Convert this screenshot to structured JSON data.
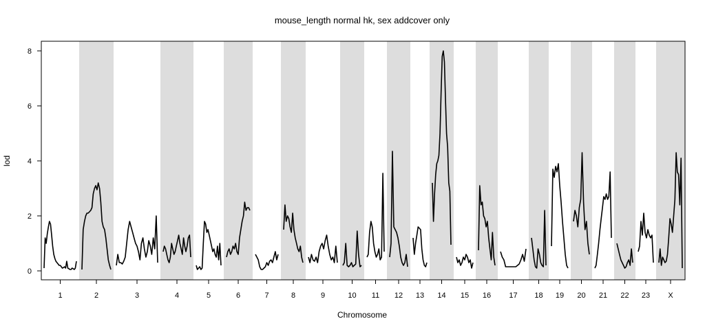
{
  "chart_data": {
    "type": "line",
    "title": "mouse_length normal hk, sex addcover only",
    "xlabel": "Chromosome",
    "ylabel": "lod",
    "ylim": [
      0,
      8.3
    ],
    "yticks": [
      "0",
      "2",
      "4",
      "6",
      "8"
    ],
    "grid": false,
    "legend": "none",
    "series_color": "#000000",
    "band_color": "#dddddd",
    "chromosomes": [
      {
        "label": "1",
        "shaded": false,
        "values": [
          0.1,
          1.2,
          1.0,
          1.35,
          1.6,
          1.8,
          1.7,
          1.3,
          0.9,
          0.6,
          0.45,
          0.35,
          0.3,
          0.25,
          0.2,
          0.2,
          0.15,
          0.1,
          0.12,
          0.15,
          0.1,
          0.35,
          0.1,
          0.08,
          0.05,
          0.05,
          0.1,
          0.08,
          0.05,
          0.1,
          0.35
        ]
      },
      {
        "label": "2",
        "shaded": true,
        "values": [
          0.05,
          1.5,
          1.8,
          2.0,
          2.1,
          2.1,
          2.15,
          2.2,
          2.3,
          2.8,
          3.0,
          3.1,
          2.95,
          3.2,
          3.0,
          2.5,
          1.8,
          1.6,
          1.5,
          1.2,
          0.8,
          0.4,
          0.2,
          0.05
        ]
      },
      {
        "label": "3",
        "shaded": false,
        "values": [
          0.2,
          0.6,
          0.3,
          0.3,
          0.25,
          0.35,
          0.5,
          1.0,
          1.5,
          1.8,
          1.6,
          1.4,
          1.2,
          1.0,
          0.9,
          0.7,
          0.4,
          1.0,
          1.2,
          0.8,
          0.5,
          0.7,
          1.1,
          0.9,
          0.6,
          1.2,
          0.8,
          2.0,
          0.3
        ]
      },
      {
        "label": "4",
        "shaded": true,
        "values": [
          0.7,
          0.9,
          0.8,
          0.6,
          0.4,
          0.3,
          0.5,
          1.0,
          0.8,
          0.6,
          0.7,
          0.9,
          1.1,
          1.3,
          1.0,
          0.8,
          0.6,
          1.2,
          0.9,
          0.7,
          0.9,
          1.2,
          1.3,
          0.5
        ]
      },
      {
        "label": "5",
        "shaded": false,
        "values": [
          0.2,
          0.05,
          0.1,
          0.15,
          0.05,
          0.1,
          1.0,
          1.8,
          1.7,
          1.4,
          1.5,
          1.3,
          1.1,
          0.9,
          0.7,
          0.8,
          0.6,
          0.5,
          0.9,
          0.4,
          1.0,
          0.2
        ]
      },
      {
        "label": "6",
        "shaded": true,
        "values": [
          0.5,
          0.7,
          0.8,
          0.6,
          0.7,
          0.9,
          0.8,
          1.0,
          0.7,
          0.6,
          1.2,
          1.5,
          1.8,
          2.0,
          2.5,
          2.2,
          2.3,
          2.3,
          2.2
        ]
      },
      {
        "label": "7",
        "shaded": false,
        "values": [
          0.6,
          0.5,
          0.4,
          0.15,
          0.05,
          0.05,
          0.1,
          0.15,
          0.3,
          0.2,
          0.35,
          0.4,
          0.3,
          0.5,
          0.7,
          0.4,
          0.6
        ]
      },
      {
        "label": "8",
        "shaded": true,
        "values": [
          1.5,
          2.4,
          1.8,
          2.0,
          1.9,
          1.6,
          1.4,
          2.1,
          1.5,
          1.2,
          1.0,
          0.8,
          0.7,
          0.9,
          0.5,
          0.3
        ]
      },
      {
        "label": "9",
        "shaded": false,
        "values": [
          0.5,
          0.3,
          0.6,
          0.4,
          0.35,
          0.5,
          0.3,
          0.7,
          0.9,
          1.0,
          0.8,
          1.1,
          1.3,
          0.9,
          0.6,
          0.4,
          0.5,
          0.3,
          0.9,
          0.3
        ]
      },
      {
        "label": "10",
        "shaded": true,
        "values": [
          0.2,
          0.3,
          1.0,
          0.2,
          0.15,
          0.2,
          0.3,
          0.15,
          0.2,
          0.25,
          1.45,
          0.6,
          0.15,
          0.2
        ]
      },
      {
        "label": "11",
        "shaded": false,
        "values": [
          0.5,
          0.6,
          1.4,
          1.8,
          1.6,
          1.0,
          0.7,
          0.5,
          0.6,
          0.8,
          0.4,
          0.5,
          3.55,
          0.7
        ]
      },
      {
        "label": "12",
        "shaded": true,
        "values": [
          0.5,
          1.0,
          4.35,
          1.6,
          1.5,
          1.4,
          1.2,
          0.9,
          0.5,
          0.3,
          0.2,
          0.3,
          0.6,
          0.15
        ]
      },
      {
        "label": "13",
        "shaded": false,
        "values": [
          1.2,
          0.6,
          1.0,
          1.3,
          1.6,
          1.55,
          1.5,
          0.8,
          0.4,
          0.2,
          0.15,
          0.3
        ]
      },
      {
        "label": "14",
        "shaded": true,
        "values": [
          3.2,
          1.8,
          2.8,
          3.5,
          3.9,
          4.0,
          4.2,
          5.0,
          6.5,
          7.8,
          8.0,
          7.6,
          6.2,
          5.0,
          4.5,
          3.2,
          2.9,
          0.95
        ]
      },
      {
        "label": "15",
        "shaded": false,
        "values": [
          0.5,
          0.3,
          0.4,
          0.2,
          0.3,
          0.5,
          0.4,
          0.6,
          0.5,
          0.3,
          0.4,
          0.1,
          0.3
        ]
      },
      {
        "label": "16",
        "shaded": true,
        "values": [
          0.75,
          3.1,
          2.4,
          2.5,
          2.0,
          1.9,
          1.6,
          1.8,
          1.2,
          0.8,
          0.4,
          1.4,
          0.5,
          0.2
        ]
      },
      {
        "label": "17",
        "shaded": false,
        "values": [
          0.7,
          0.5,
          0.4,
          0.15,
          0.15,
          0.15,
          0.15,
          0.15,
          0.15,
          0.15,
          0.2,
          0.25,
          0.4,
          0.6,
          0.35,
          0.8
        ]
      },
      {
        "label": "18",
        "shaded": true,
        "values": [
          1.2,
          0.8,
          0.4,
          0.15,
          0.1,
          0.8,
          0.6,
          0.3,
          0.2,
          0.15,
          2.2,
          0.2
        ]
      },
      {
        "label": "19",
        "shaded": false,
        "values": [
          0.9,
          3.7,
          3.4,
          3.8,
          3.6,
          3.9,
          3.1,
          2.5,
          1.8,
          1.2,
          0.6,
          0.2,
          0.1
        ]
      },
      {
        "label": "20",
        "shaded": true,
        "values": [
          1.8,
          2.2,
          2.0,
          1.6,
          2.3,
          2.6,
          4.3,
          2.5,
          1.5,
          1.8,
          1.0,
          0.6
        ]
      },
      {
        "label": "21",
        "shaded": false,
        "values": [
          0.1,
          0.2,
          0.6,
          1.0,
          1.5,
          1.9,
          2.3,
          2.7,
          2.6,
          2.8,
          2.6,
          2.7,
          3.6,
          1.2
        ]
      },
      {
        "label": "22",
        "shaded": true,
        "values": [
          1.0,
          0.8,
          0.6,
          0.4,
          0.3,
          0.2,
          0.1,
          0.15,
          0.3,
          0.4,
          0.2,
          0.8,
          0.3
        ]
      },
      {
        "label": "23",
        "shaded": false,
        "values": [
          0.7,
          0.9,
          1.8,
          1.3,
          2.1,
          1.4,
          1.2,
          1.5,
          1.3,
          1.2,
          1.3,
          0.3
        ]
      },
      {
        "label": "X",
        "shaded": true,
        "values": [
          0.3,
          0.8,
          0.2,
          0.5,
          0.4,
          0.3,
          0.35,
          0.6,
          1.2,
          1.9,
          1.7,
          1.4,
          2.0,
          2.6,
          4.3,
          3.6,
          3.5,
          2.4,
          4.1,
          0.1
        ]
      }
    ]
  }
}
